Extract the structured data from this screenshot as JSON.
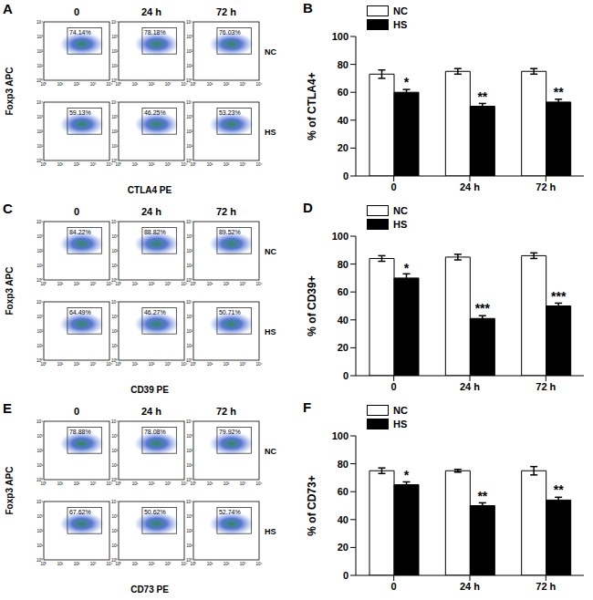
{
  "flow_panels": [
    {
      "label": "A",
      "x_label": "CTLA4 PE",
      "y_label": "Foxp3 APC",
      "times": [
        "0",
        "24 h",
        "72 h"
      ],
      "groups": [
        "NC",
        "HS"
      ],
      "percent_labels": [
        [
          "74.14%",
          "78.18%",
          "76.03%"
        ],
        [
          "59.13%",
          "46.25%",
          "53.23%"
        ]
      ]
    },
    {
      "label": "C",
      "x_label": "CD39 PE",
      "y_label": "Foxp3 APC",
      "times": [
        "0",
        "24 h",
        "72 h"
      ],
      "groups": [
        "NC",
        "HS"
      ],
      "percent_labels": [
        [
          "84.22%",
          "88.82%",
          "89.52%"
        ],
        [
          "64.49%",
          "46.27%",
          "50.71%"
        ]
      ]
    },
    {
      "label": "E",
      "x_label": "CD73 PE",
      "y_label": "Foxp3 APC",
      "times": [
        "0",
        "24 h",
        "72 h"
      ],
      "groups": [
        "NC",
        "HS"
      ],
      "percent_labels": [
        [
          "78.88%",
          "78.08%",
          "79.92%"
        ],
        [
          "67.62%",
          "50.62%",
          "52.74%"
        ]
      ]
    }
  ],
  "axis_tick_labels": [
    "10⁰",
    "10¹",
    "10²",
    "10³",
    "10⁴"
  ],
  "chart_data": [
    {
      "panel": "B",
      "type": "bar",
      "y_label": "% of CTLA4+",
      "categories": [
        "0",
        "24 h",
        "72 h"
      ],
      "series": [
        {
          "name": "NC",
          "color": "#ffffff",
          "values": [
            73,
            75,
            75
          ],
          "errors": [
            3,
            2,
            2
          ]
        },
        {
          "name": "HS",
          "color": "#000000",
          "values": [
            60,
            50,
            53
          ],
          "errors": [
            2,
            2,
            2
          ],
          "significance": [
            "*",
            "**",
            "**"
          ]
        }
      ],
      "ylim": [
        0,
        100
      ],
      "yticks": [
        0,
        20,
        40,
        60,
        80,
        100
      ],
      "legend": "top-left"
    },
    {
      "panel": "D",
      "type": "bar",
      "y_label": "% of CD39+",
      "categories": [
        "0",
        "24 h",
        "72 h"
      ],
      "series": [
        {
          "name": "NC",
          "color": "#ffffff",
          "values": [
            84,
            85,
            86
          ],
          "errors": [
            2,
            2,
            2
          ]
        },
        {
          "name": "HS",
          "color": "#000000",
          "values": [
            70,
            41,
            50
          ],
          "errors": [
            3,
            2,
            2
          ],
          "significance": [
            "*",
            "***",
            "***"
          ]
        }
      ],
      "ylim": [
        0,
        100
      ],
      "yticks": [
        0,
        20,
        40,
        60,
        80,
        100
      ],
      "legend": "top-left"
    },
    {
      "panel": "F",
      "type": "bar",
      "y_label": "% of CD73+",
      "categories": [
        "0",
        "24 h",
        "72 h"
      ],
      "series": [
        {
          "name": "NC",
          "color": "#ffffff",
          "values": [
            75,
            75,
            75
          ],
          "errors": [
            2,
            1,
            3
          ]
        },
        {
          "name": "HS",
          "color": "#000000",
          "values": [
            65,
            50,
            54
          ],
          "errors": [
            2,
            2,
            2
          ],
          "significance": [
            "*",
            "**",
            "**"
          ]
        }
      ],
      "ylim": [
        0,
        100
      ],
      "yticks": [
        0,
        20,
        40,
        60,
        80,
        100
      ],
      "legend": "top-left"
    }
  ]
}
